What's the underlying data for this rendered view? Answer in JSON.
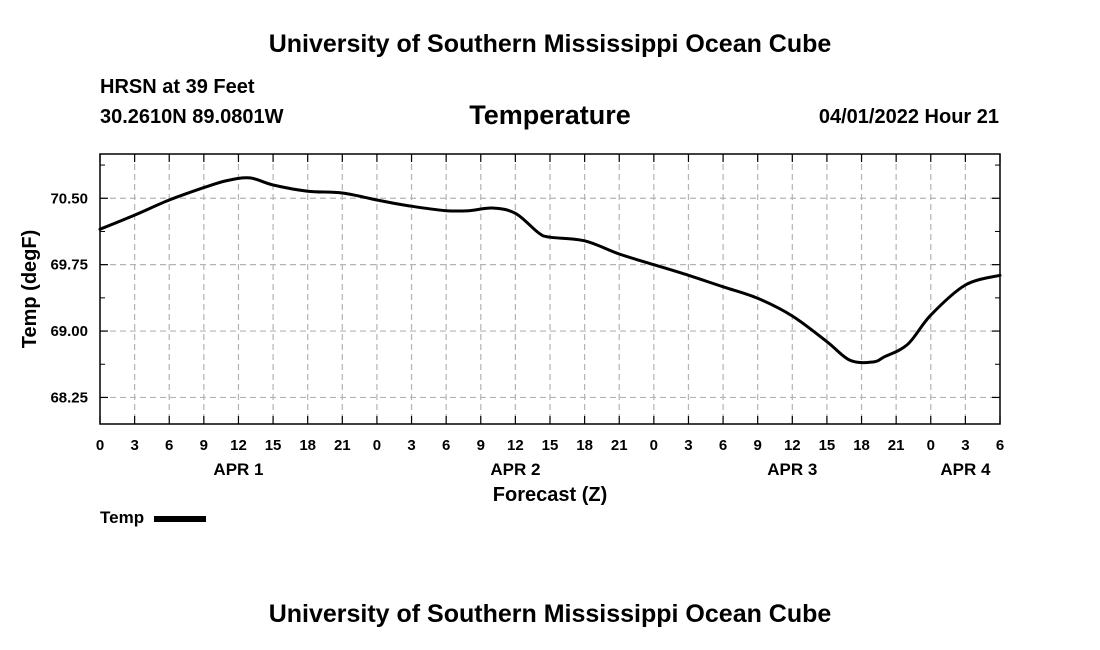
{
  "header": {
    "title": "University of Southern Mississippi Ocean Cube",
    "station": "HRSN at 39 Feet",
    "coords": "30.2610N  89.0801W",
    "datetime": "04/01/2022 Hour 21"
  },
  "footer": {
    "title": "University of Southern Mississippi Ocean Cube"
  },
  "legend": {
    "label": "Temp"
  },
  "colors": {
    "line": "#000000",
    "grid": "#b4b4b4"
  },
  "chart_data": {
    "type": "line",
    "title": "Temperature",
    "xlabel": "Forecast (Z)",
    "ylabel": "Temp (degF)",
    "xlim": [
      0,
      78
    ],
    "ylim": [
      67.95,
      71.0
    ],
    "x_ticks": [
      0,
      3,
      6,
      9,
      12,
      15,
      18,
      21,
      24,
      27,
      30,
      33,
      36,
      39,
      42,
      45,
      48,
      51,
      54,
      57,
      60,
      63,
      66,
      69,
      72,
      75,
      78
    ],
    "x_tick_labels": [
      "0",
      "3",
      "6",
      "9",
      "12",
      "15",
      "18",
      "21",
      "0",
      "3",
      "6",
      "9",
      "12",
      "15",
      "18",
      "21",
      "0",
      "3",
      "6",
      "9",
      "12",
      "15",
      "18",
      "21",
      "0",
      "3",
      "6"
    ],
    "y_ticks": [
      68.25,
      69.0,
      69.75,
      70.5
    ],
    "y_tick_labels": [
      "68.25",
      "69.00",
      "69.75",
      "70.50"
    ],
    "day_labels": [
      {
        "label": "APR 1",
        "x": 12
      },
      {
        "label": "APR 2",
        "x": 36
      },
      {
        "label": "APR 3",
        "x": 60
      },
      {
        "label": "APR 4",
        "x": 75
      }
    ],
    "grid": true,
    "series": [
      {
        "name": "Temp",
        "x": [
          0,
          3,
          6,
          9,
          11,
          13,
          15,
          18,
          21,
          24,
          27,
          30,
          32,
          34,
          36,
          38,
          39,
          42,
          45,
          48,
          51,
          54,
          57,
          60,
          63,
          65,
          67,
          68,
          70,
          72,
          75,
          78
        ],
        "y": [
          70.15,
          70.31,
          70.48,
          70.62,
          70.7,
          70.73,
          70.65,
          70.58,
          70.56,
          70.48,
          70.41,
          70.36,
          70.36,
          70.39,
          70.33,
          70.11,
          70.06,
          70.02,
          69.87,
          69.75,
          69.63,
          69.5,
          69.37,
          69.17,
          68.88,
          68.67,
          68.65,
          68.71,
          68.85,
          69.18,
          69.52,
          69.63
        ]
      }
    ]
  }
}
